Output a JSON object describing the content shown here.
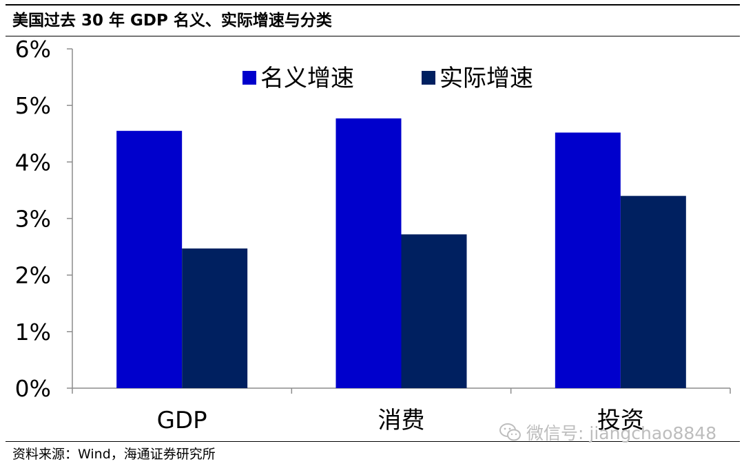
{
  "header": {
    "title": "美国过去 30 年 GDP 名义、实际增速与分类"
  },
  "footer": {
    "source": "资料来源：Wind，海通证券研究所"
  },
  "watermark": {
    "text": "微信号: jiangchao8848",
    "icon": "wechat-icon"
  },
  "chart_data": {
    "type": "bar",
    "categories": [
      "GDP",
      "消费",
      "投资"
    ],
    "series": [
      {
        "name": "名义增速",
        "values": [
          4.55,
          4.77,
          4.52
        ],
        "color": "#0000cc"
      },
      {
        "name": "实际增速",
        "values": [
          2.47,
          2.72,
          3.4
        ],
        "color": "#002060"
      }
    ],
    "ylim": [
      0,
      6
    ],
    "yticks": [
      0,
      1,
      2,
      3,
      4,
      5,
      6
    ],
    "ytick_labels": [
      "0%",
      "1%",
      "2%",
      "3%",
      "4%",
      "5%",
      "6%"
    ],
    "value_format": "percent",
    "legend_position": "top-center",
    "grid": false,
    "title": "",
    "xlabel": "",
    "ylabel": ""
  }
}
